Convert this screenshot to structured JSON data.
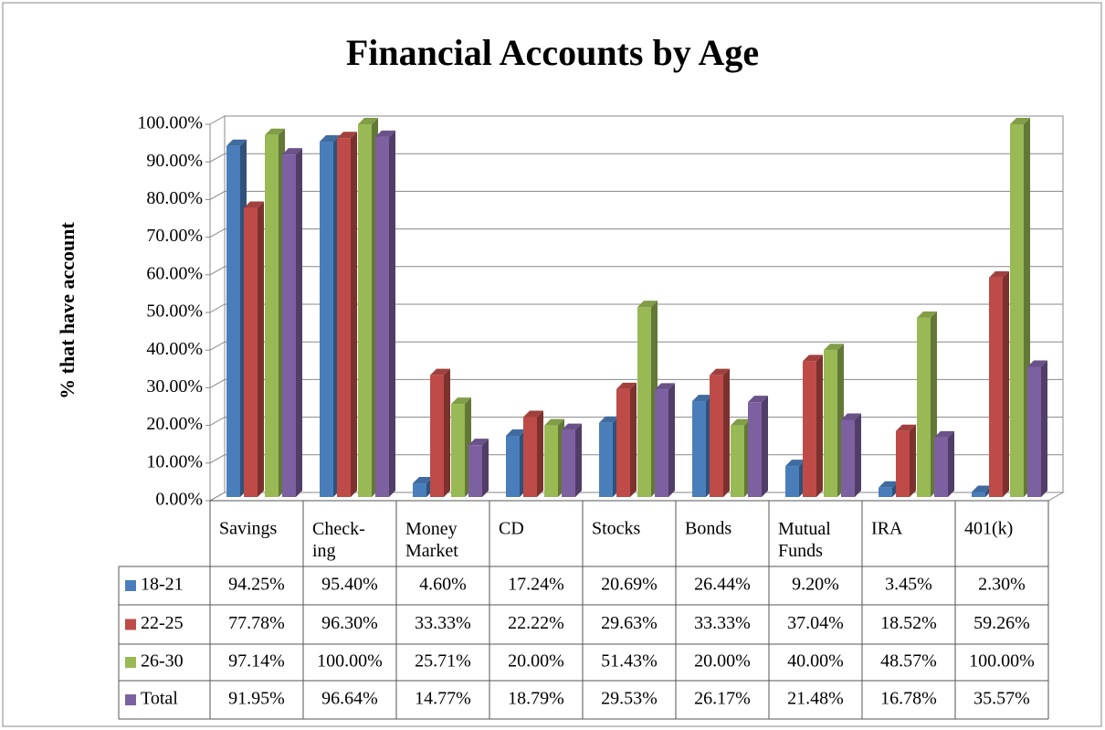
{
  "chart_data": {
    "type": "bar3d",
    "title": "Financial Accounts by Age",
    "ylabel": "% that have account",
    "categories": [
      "Savings",
      "Check-\ning",
      "Money\nMarket",
      "CD",
      "Stocks",
      "Bonds",
      "Mutual\nFunds",
      "IRA",
      "401(k)"
    ],
    "series": [
      {
        "name": "18-21",
        "color": "#4a7ebb",
        "values": [
          94.25,
          95.4,
          4.6,
          17.24,
          20.69,
          26.44,
          9.2,
          3.45,
          2.3
        ],
        "value_labels": [
          "94.25%",
          "95.40%",
          "4.60%",
          "17.24%",
          "20.69%",
          "26.44%",
          "9.20%",
          "3.45%",
          "2.30%"
        ]
      },
      {
        "name": "22-25",
        "color": "#be4b48",
        "values": [
          77.78,
          96.3,
          33.33,
          22.22,
          29.63,
          33.33,
          37.04,
          18.52,
          59.26
        ],
        "value_labels": [
          "77.78%",
          "96.30%",
          "33.33%",
          "22.22%",
          "29.63%",
          "33.33%",
          "37.04%",
          "18.52%",
          "59.26%"
        ]
      },
      {
        "name": "26-30",
        "color": "#98b954",
        "values": [
          97.14,
          100.0,
          25.71,
          20.0,
          51.43,
          20.0,
          40.0,
          48.57,
          100.0
        ],
        "value_labels": [
          "97.14%",
          "100.00%",
          "25.71%",
          "20.00%",
          "51.43%",
          "20.00%",
          "40.00%",
          "48.57%",
          "100.00%"
        ]
      },
      {
        "name": "Total",
        "color": "#7d60a0",
        "values": [
          91.95,
          96.64,
          14.77,
          18.79,
          29.53,
          26.17,
          21.48,
          16.78,
          35.57
        ],
        "value_labels": [
          "91.95%",
          "96.64%",
          "14.77%",
          "18.79%",
          "29.53%",
          "26.17%",
          "21.48%",
          "16.78%",
          "35.57%"
        ]
      }
    ],
    "ylim": [
      0,
      100
    ],
    "yticks": [
      {
        "value": 0,
        "label": "0.00%"
      },
      {
        "value": 10,
        "label": "10.00%"
      },
      {
        "value": 20,
        "label": "20.00%"
      },
      {
        "value": 30,
        "label": "30.00%"
      },
      {
        "value": 40,
        "label": "40.00%"
      },
      {
        "value": 50,
        "label": "50.00%"
      },
      {
        "value": 60,
        "label": "60.00%"
      },
      {
        "value": 70,
        "label": "70.00%"
      },
      {
        "value": 80,
        "label": "80.00%"
      },
      {
        "value": 90,
        "label": "90.00%"
      },
      {
        "value": 100,
        "label": "100.00%"
      }
    ],
    "grid": true,
    "legend": "data-table"
  }
}
